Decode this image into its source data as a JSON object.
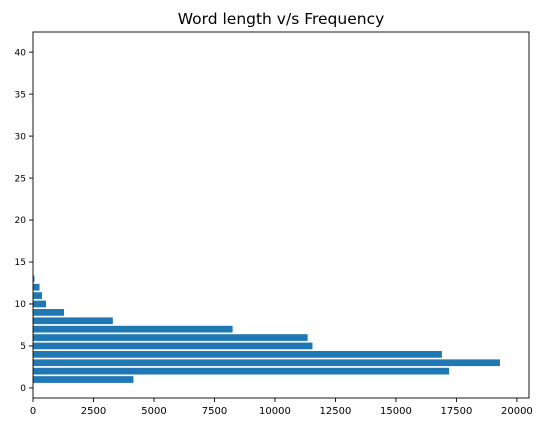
{
  "chart_data": {
    "type": "bar",
    "orientation": "horizontal",
    "title": "Word length v/s Frequency",
    "xlabel": "",
    "ylabel": "",
    "bar_color": "#1f77b4",
    "grid": false,
    "xlim": [
      0,
      20500
    ],
    "ylim": [
      -1.2,
      42.4
    ],
    "xticks": [
      0,
      2500,
      5000,
      7500,
      10000,
      12500,
      15000,
      17500,
      20000
    ],
    "yticks": [
      0,
      5,
      10,
      15,
      20,
      25,
      30,
      35,
      40
    ],
    "categories": [
      1,
      2,
      3,
      4,
      5,
      6,
      7,
      8,
      9,
      10,
      11,
      12,
      13,
      14
    ],
    "values": [
      4150,
      17200,
      19300,
      16900,
      11550,
      11350,
      8250,
      3300,
      1280,
      540,
      370,
      270,
      60,
      10
    ]
  }
}
